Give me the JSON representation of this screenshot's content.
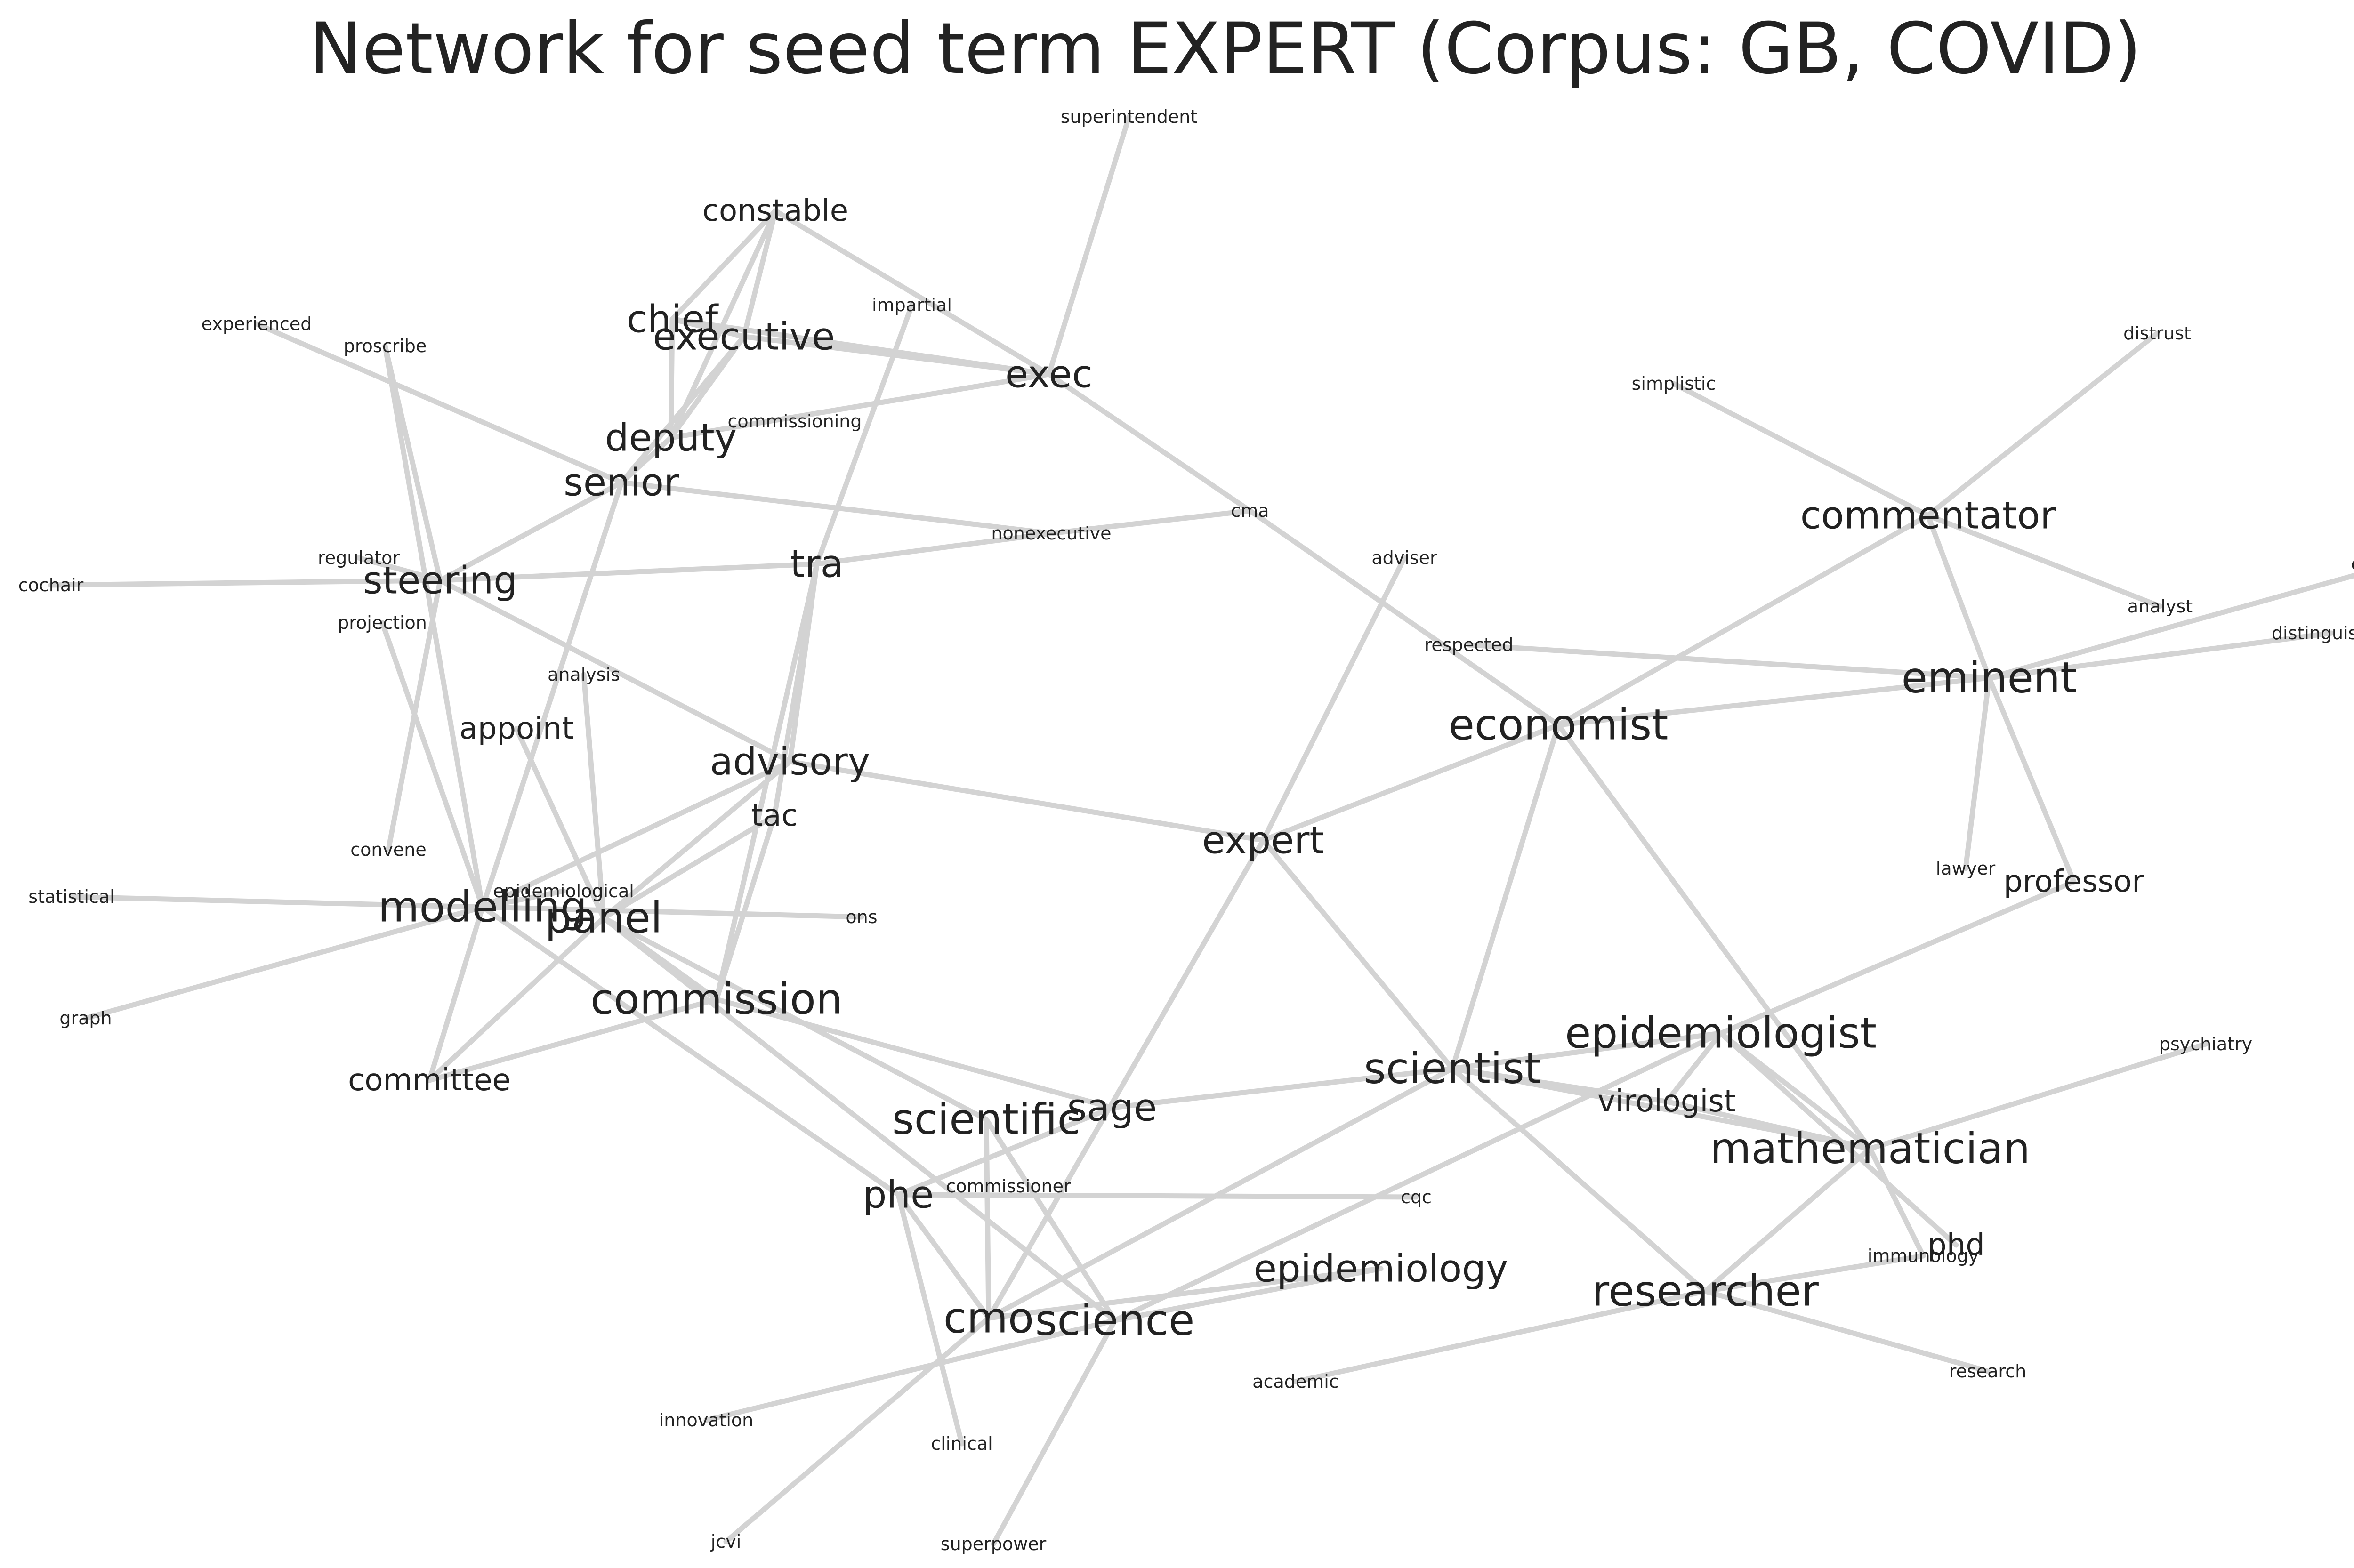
{
  "title": "Network for seed term EXPERT (Corpus: GB, COVID)",
  "colors": {
    "edge": "#d3d3d3",
    "text": "#222222",
    "background": "#ffffff"
  },
  "nodes": [
    {
      "id": "superintendent",
      "label": "superintendent",
      "weight": "small"
    },
    {
      "id": "constable",
      "label": "constable",
      "weight": "medium"
    },
    {
      "id": "impartial",
      "label": "impartial",
      "weight": "small"
    },
    {
      "id": "experienced",
      "label": "experienced",
      "weight": "small"
    },
    {
      "id": "proscribe",
      "label": "proscribe",
      "weight": "small"
    },
    {
      "id": "chief",
      "label": "chief",
      "weight": "large"
    },
    {
      "id": "executive",
      "label": "executive",
      "weight": "large"
    },
    {
      "id": "exec",
      "label": "exec",
      "weight": "large"
    },
    {
      "id": "commissioning",
      "label": "commissioning",
      "weight": "small"
    },
    {
      "id": "deputy",
      "label": "deputy",
      "weight": "large"
    },
    {
      "id": "senior",
      "label": "senior",
      "weight": "large"
    },
    {
      "id": "distrust",
      "label": "distrust",
      "weight": "small"
    },
    {
      "id": "simplistic",
      "label": "simplistic",
      "weight": "small"
    },
    {
      "id": "commentator",
      "label": "commentator",
      "weight": "large"
    },
    {
      "id": "cma",
      "label": "cma",
      "weight": "small"
    },
    {
      "id": "nonexecutive",
      "label": "nonexecutive",
      "weight": "small"
    },
    {
      "id": "regulator",
      "label": "regulator",
      "weight": "small"
    },
    {
      "id": "cochair",
      "label": "cochair",
      "weight": "small"
    },
    {
      "id": "steering",
      "label": "steering",
      "weight": "large"
    },
    {
      "id": "tra",
      "label": "tra",
      "weight": "large"
    },
    {
      "id": "adviser",
      "label": "adviser",
      "weight": "small"
    },
    {
      "id": "esteemed",
      "label": "esteemed",
      "weight": "small"
    },
    {
      "id": "analyst",
      "label": "analyst",
      "weight": "small"
    },
    {
      "id": "projection",
      "label": "projection",
      "weight": "small"
    },
    {
      "id": "distinguished",
      "label": "distinguished",
      "weight": "small"
    },
    {
      "id": "respected",
      "label": "respected",
      "weight": "small"
    },
    {
      "id": "analysis",
      "label": "analysis",
      "weight": "small"
    },
    {
      "id": "eminent",
      "label": "eminent",
      "weight": "xlarge"
    },
    {
      "id": "appoint",
      "label": "appoint",
      "weight": "medium"
    },
    {
      "id": "economist",
      "label": "economist",
      "weight": "xlarge"
    },
    {
      "id": "advisory",
      "label": "advisory",
      "weight": "large"
    },
    {
      "id": "tac",
      "label": "tac",
      "weight": "medium"
    },
    {
      "id": "expert",
      "label": "expert",
      "weight": "large"
    },
    {
      "id": "convene",
      "label": "convene",
      "weight": "small"
    },
    {
      "id": "lawyer",
      "label": "lawyer",
      "weight": "small"
    },
    {
      "id": "professor",
      "label": "professor",
      "weight": "medium"
    },
    {
      "id": "statistical",
      "label": "statistical",
      "weight": "small"
    },
    {
      "id": "epidemiological",
      "label": "epidemiological",
      "weight": "small"
    },
    {
      "id": "modelling",
      "label": "modelling",
      "weight": "xlarge"
    },
    {
      "id": "panel",
      "label": "panel",
      "weight": "xlarge"
    },
    {
      "id": "ons",
      "label": "ons",
      "weight": "small"
    },
    {
      "id": "graph",
      "label": "graph",
      "weight": "small"
    },
    {
      "id": "commission",
      "label": "commission",
      "weight": "xlarge"
    },
    {
      "id": "epidemiologist",
      "label": "epidemiologist",
      "weight": "xlarge"
    },
    {
      "id": "psychiatry",
      "label": "psychiatry",
      "weight": "small"
    },
    {
      "id": "committee",
      "label": "committee",
      "weight": "medium"
    },
    {
      "id": "scientist",
      "label": "scientist",
      "weight": "xlarge"
    },
    {
      "id": "virologist",
      "label": "virologist",
      "weight": "medium"
    },
    {
      "id": "sage",
      "label": "sage",
      "weight": "large"
    },
    {
      "id": "scientific",
      "label": "scientific",
      "weight": "xlarge"
    },
    {
      "id": "mathematician",
      "label": "mathematician",
      "weight": "xlarge"
    },
    {
      "id": "commissioner",
      "label": "commissioner",
      "weight": "small"
    },
    {
      "id": "phe",
      "label": "phe",
      "weight": "large"
    },
    {
      "id": "cqc",
      "label": "cqc",
      "weight": "small"
    },
    {
      "id": "phd",
      "label": "phd",
      "weight": "medium"
    },
    {
      "id": "immunology",
      "label": "immunology",
      "weight": "small"
    },
    {
      "id": "epidemiology",
      "label": "epidemiology",
      "weight": "large"
    },
    {
      "id": "researcher",
      "label": "researcher",
      "weight": "xlarge"
    },
    {
      "id": "cmo",
      "label": "cmo",
      "weight": "xlarge"
    },
    {
      "id": "science",
      "label": "science",
      "weight": "xlarge"
    },
    {
      "id": "academic",
      "label": "academic",
      "weight": "small"
    },
    {
      "id": "research",
      "label": "research",
      "weight": "small"
    },
    {
      "id": "innovation",
      "label": "innovation",
      "weight": "small"
    },
    {
      "id": "clinical",
      "label": "clinical",
      "weight": "small"
    },
    {
      "id": "jcvi",
      "label": "jcvi",
      "weight": "small"
    },
    {
      "id": "superpower",
      "label": "superpower",
      "weight": "small"
    }
  ],
  "edges": [
    [
      "expert",
      "advisory"
    ],
    [
      "expert",
      "economist"
    ],
    [
      "expert",
      "adviser"
    ],
    [
      "expert",
      "scientist"
    ],
    [
      "expert",
      "cmo"
    ],
    [
      "economist",
      "commentator"
    ],
    [
      "economist",
      "eminent"
    ],
    [
      "economist",
      "cma"
    ],
    [
      "economist",
      "scientist"
    ],
    [
      "economist",
      "mathematician"
    ],
    [
      "cma",
      "exec"
    ],
    [
      "cma",
      "nonexecutive"
    ],
    [
      "exec",
      "constable"
    ],
    [
      "exec",
      "superintendent"
    ],
    [
      "exec",
      "chief"
    ],
    [
      "exec",
      "executive"
    ],
    [
      "exec",
      "deputy"
    ],
    [
      "constable",
      "chief"
    ],
    [
      "constable",
      "executive"
    ],
    [
      "constable",
      "deputy"
    ],
    [
      "chief",
      "executive"
    ],
    [
      "chief",
      "deputy"
    ],
    [
      "executive",
      "deputy"
    ],
    [
      "executive",
      "senior"
    ],
    [
      "deputy",
      "senior"
    ],
    [
      "senior",
      "experienced"
    ],
    [
      "senior",
      "steering"
    ],
    [
      "senior",
      "nonexecutive"
    ],
    [
      "senior",
      "modelling"
    ],
    [
      "nonexecutive",
      "tra"
    ],
    [
      "tra",
      "steering"
    ],
    [
      "tra",
      "impartial"
    ],
    [
      "tra",
      "advisory"
    ],
    [
      "tra",
      "tac"
    ],
    [
      "tra",
      "commission"
    ],
    [
      "regulator",
      "steering"
    ],
    [
      "cochair",
      "steering"
    ],
    [
      "steering",
      "proscribe"
    ],
    [
      "steering",
      "convene"
    ],
    [
      "steering",
      "advisory"
    ],
    [
      "projection",
      "modelling"
    ],
    [
      "proscribe",
      "modelling"
    ],
    [
      "analysis",
      "panel"
    ],
    [
      "appoint",
      "panel"
    ],
    [
      "advisory",
      "panel"
    ],
    [
      "advisory",
      "modelling"
    ],
    [
      "tac",
      "panel"
    ],
    [
      "tac",
      "commission"
    ],
    [
      "statistical",
      "modelling"
    ],
    [
      "graph",
      "modelling"
    ],
    [
      "modelling",
      "ons"
    ],
    [
      "modelling",
      "committee"
    ],
    [
      "modelling",
      "phe"
    ],
    [
      "modelling",
      "epidemiological"
    ],
    [
      "panel",
      "scientific"
    ],
    [
      "panel",
      "science"
    ],
    [
      "panel",
      "commission"
    ],
    [
      "panel",
      "committee"
    ],
    [
      "commission",
      "committee"
    ],
    [
      "commission",
      "sage"
    ],
    [
      "commentator",
      "simplistic"
    ],
    [
      "commentator",
      "distrust"
    ],
    [
      "commentator",
      "analyst"
    ],
    [
      "commentator",
      "eminent"
    ],
    [
      "eminent",
      "respected"
    ],
    [
      "eminent",
      "esteemed"
    ],
    [
      "eminent",
      "distinguished"
    ],
    [
      "eminent",
      "lawyer"
    ],
    [
      "eminent",
      "professor"
    ],
    [
      "professor",
      "epidemiologist"
    ],
    [
      "scientist",
      "sage"
    ],
    [
      "scientist",
      "epidemiologist"
    ],
    [
      "scientist",
      "virologist"
    ],
    [
      "scientist",
      "mathematician"
    ],
    [
      "scientist",
      "researcher"
    ],
    [
      "scientist",
      "cmo"
    ],
    [
      "epidemiologist",
      "mathematician"
    ],
    [
      "epidemiologist",
      "virologist"
    ],
    [
      "epidemiologist",
      "phd"
    ],
    [
      "epidemiologist",
      "science"
    ],
    [
      "virologist",
      "mathematician"
    ],
    [
      "mathematician",
      "psychiatry"
    ],
    [
      "mathematician",
      "researcher"
    ],
    [
      "mathematician",
      "immunology"
    ],
    [
      "researcher",
      "academic"
    ],
    [
      "researcher",
      "research"
    ],
    [
      "researcher",
      "immunology"
    ],
    [
      "sage",
      "phe"
    ],
    [
      "phe",
      "cqc"
    ],
    [
      "phe",
      "cmo"
    ],
    [
      "phe",
      "clinical"
    ],
    [
      "scientific",
      "cmo"
    ],
    [
      "scientific",
      "science"
    ],
    [
      "cmo",
      "epidemiology"
    ],
    [
      "cmo",
      "jcvi"
    ],
    [
      "science",
      "innovation"
    ],
    [
      "science",
      "superpower"
    ],
    [
      "science",
      "epidemiology"
    ]
  ]
}
